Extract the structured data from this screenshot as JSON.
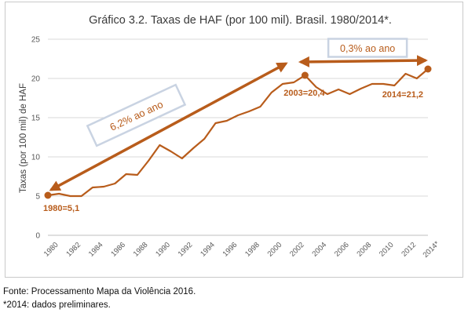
{
  "chart_data": {
    "type": "line",
    "title": "Gráfico 3.2. Taxas de  HAF  (por 100 mil). Brasil. 1980/2014*.",
    "ylabel": "Taxas (por 100 mil) de HAF",
    "xlabel": "",
    "ylim": [
      0,
      25
    ],
    "yticks": [
      "0",
      "5",
      "10",
      "15",
      "20",
      "25"
    ],
    "xticks": [
      "1980",
      "1982",
      "1984",
      "1986",
      "1988",
      "1990",
      "1992",
      "1994",
      "1996",
      "1998",
      "2000",
      "2002",
      "2004",
      "2006",
      "2008",
      "2010",
      "2012",
      "2014*"
    ],
    "grid": "horizontal",
    "series_color": "#b85c1b",
    "series": [
      {
        "x": [
          1980,
          1981,
          1982,
          1983,
          1984,
          1985,
          1986,
          1987,
          1988,
          1989,
          1990,
          1991,
          1992,
          1993,
          1994,
          1995,
          1996,
          1997,
          1998,
          1999,
          2000,
          2001,
          2002,
          2003,
          2004,
          2005,
          2006,
          2007,
          2008,
          2009,
          2010,
          2011,
          2012,
          2013,
          2014
        ],
        "values": [
          5.1,
          5.3,
          5.0,
          5.0,
          6.1,
          6.2,
          6.6,
          7.8,
          7.7,
          9.5,
          11.5,
          10.7,
          9.8,
          11.1,
          12.3,
          14.3,
          14.6,
          15.3,
          15.8,
          16.4,
          18.2,
          19.3,
          19.5,
          20.4,
          18.9,
          18.0,
          18.6,
          18.0,
          18.7,
          19.3,
          19.3,
          19.1,
          20.6,
          20.0,
          21.2
        ]
      }
    ],
    "annotations": {
      "start_label": "1980=5,1",
      "mid_label": "2003=20,4",
      "end_label": "2014=21,2",
      "trend1_label": "6,2% ao ano",
      "trend2_label": "0,3% ao ano"
    }
  },
  "footnotes": {
    "source": "Fonte: Processamento Mapa da Violência 2016.",
    "preliminary": "*2014: dados preliminares."
  }
}
